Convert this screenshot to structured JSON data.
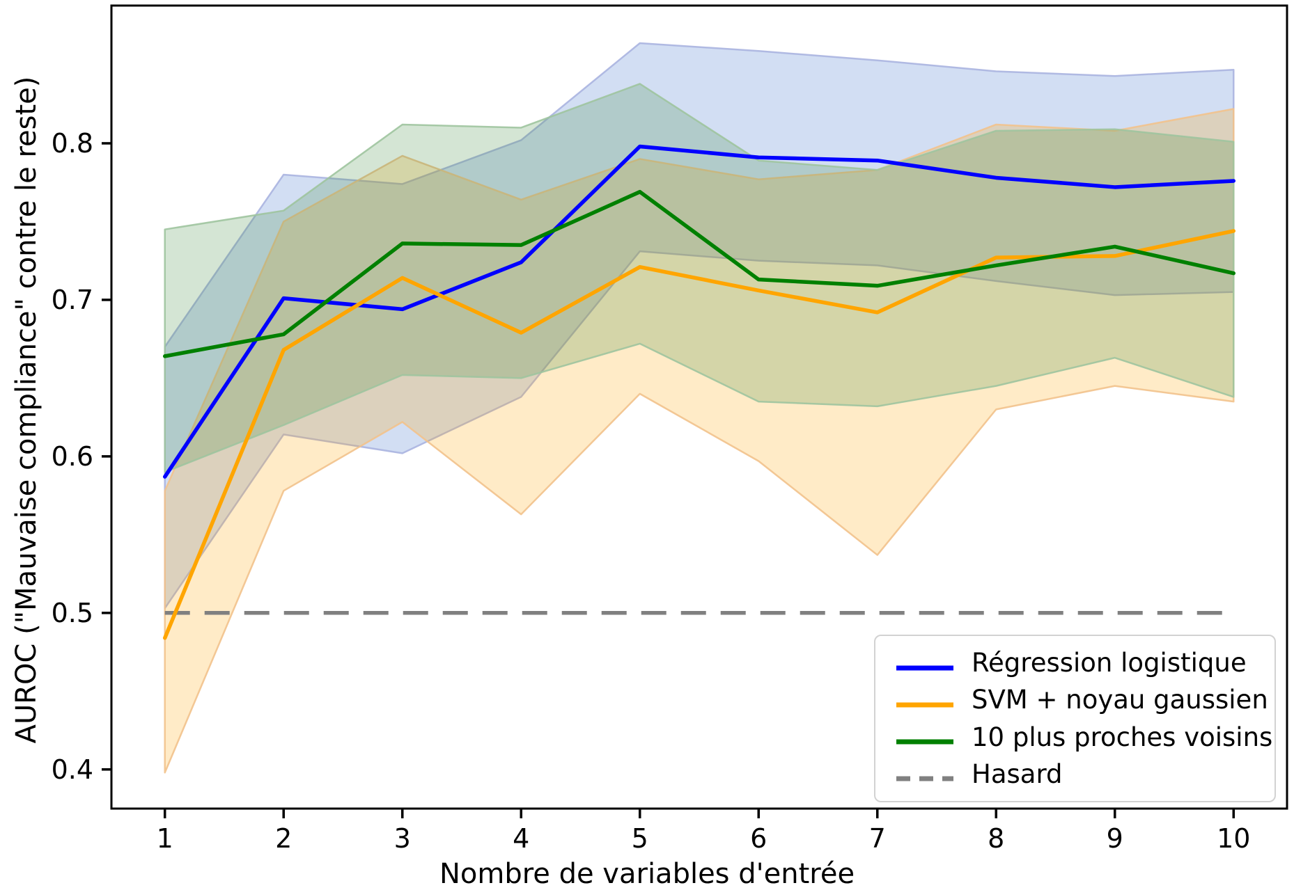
{
  "figure": {
    "x_label": "Nombre de variables d'entrée",
    "y_label": "AUROC (\"Mauvaise compliance\" contre le reste)"
  },
  "legend": {
    "items": [
      {
        "label": "Régression logistique",
        "color": "#0000ff",
        "dashed": false
      },
      {
        "label": "SVM + noyau gaussien",
        "color": "#ffa500",
        "dashed": false
      },
      {
        "label": "10 plus proches voisins",
        "color": "#008000",
        "dashed": false
      },
      {
        "label": "Hasard",
        "color": "#808080",
        "dashed": true
      }
    ]
  },
  "chart_data": {
    "type": "line",
    "title": "",
    "xlabel": "Nombre de variables d'entrée",
    "ylabel": "AUROC (\"Mauvaise compliance\" contre le reste)",
    "x": [
      1,
      2,
      3,
      4,
      5,
      6,
      7,
      8,
      9,
      10
    ],
    "x_tick_labels": [
      "1",
      "2",
      "3",
      "4",
      "5",
      "6",
      "7",
      "8",
      "9",
      "10"
    ],
    "y_tick_labels": [
      "0.4",
      "0.5",
      "0.6",
      "0.7",
      "0.8"
    ],
    "y_tick_values": [
      0.4,
      0.5,
      0.6,
      0.7,
      0.8
    ],
    "xlim": [
      0.55,
      10.45
    ],
    "ylim": [
      0.375,
      0.888
    ],
    "grid": false,
    "legend_position": "lower right",
    "series": [
      {
        "name": "Régression logistique",
        "color": "#0000ff",
        "values": [
          0.587,
          0.701,
          0.694,
          0.724,
          0.798,
          0.791,
          0.789,
          0.778,
          0.772,
          0.776
        ],
        "band_upper": [
          0.67,
          0.78,
          0.774,
          0.802,
          0.864,
          0.859,
          0.853,
          0.846,
          0.843,
          0.847
        ],
        "band_lower": [
          0.503,
          0.614,
          0.602,
          0.638,
          0.731,
          0.725,
          0.722,
          0.712,
          0.703,
          0.705
        ],
        "band_fill": "#4477cc",
        "band_fill_opacity": 0.24,
        "band_edge": "#aab4e0"
      },
      {
        "name": "SVM + noyau gaussien",
        "color": "#ffa500",
        "values": [
          0.484,
          0.668,
          0.714,
          0.679,
          0.721,
          0.706,
          0.692,
          0.727,
          0.728,
          0.744
        ],
        "band_upper": [
          0.578,
          0.75,
          0.792,
          0.764,
          0.79,
          0.777,
          0.783,
          0.812,
          0.808,
          0.822
        ],
        "band_lower": [
          0.398,
          0.578,
          0.622,
          0.563,
          0.64,
          0.597,
          0.537,
          0.63,
          0.645,
          0.635
        ],
        "band_fill": "#ffa500",
        "band_fill_opacity": 0.22,
        "band_edge": "#f2c28c"
      },
      {
        "name": "10 plus proches voisins",
        "color": "#008000",
        "values": [
          0.664,
          0.678,
          0.736,
          0.735,
          0.769,
          0.713,
          0.709,
          0.722,
          0.734,
          0.717
        ],
        "band_upper": [
          0.745,
          0.757,
          0.812,
          0.81,
          0.838,
          0.789,
          0.783,
          0.808,
          0.809,
          0.801
        ],
        "band_lower": [
          0.59,
          0.62,
          0.652,
          0.65,
          0.672,
          0.635,
          0.632,
          0.645,
          0.663,
          0.638
        ],
        "band_fill": "#3a8a3a",
        "band_fill_opacity": 0.22,
        "band_edge": "#9fc49f"
      }
    ],
    "baseline": {
      "name": "Hasard",
      "color": "#808080",
      "value": 0.5,
      "style": "dashed",
      "x_start": 1,
      "x_end": 10
    }
  }
}
